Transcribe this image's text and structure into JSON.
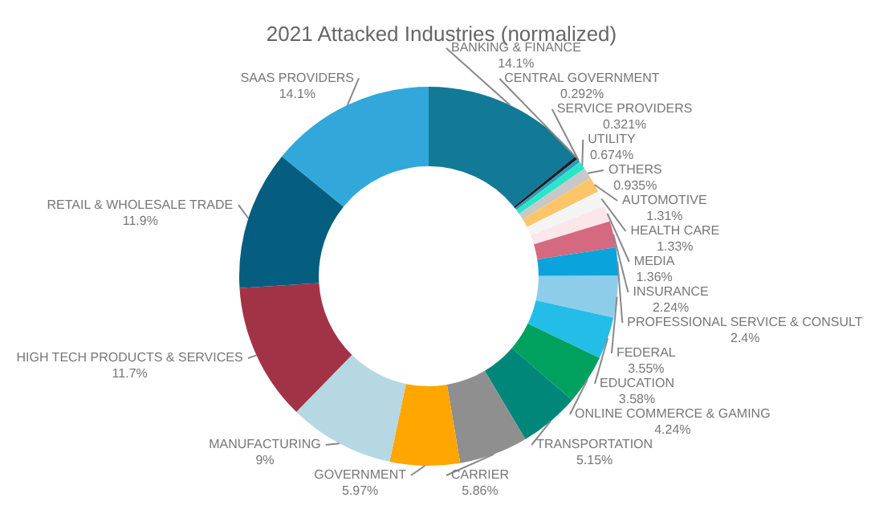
{
  "chart_data": {
    "type": "donut",
    "title": "2021 Attacked Industries (normalized)",
    "categories": [
      "BANKING & FINANCE",
      "CENTRAL GOVERNMENT",
      "SERVICE PROVIDERS",
      "UTILITY",
      "OTHERS",
      "AUTOMOTIVE",
      "HEALTH CARE",
      "MEDIA",
      "INSURANCE",
      "PROFESSIONAL SERVICE & CONSULT",
      "FEDERAL",
      "EDUCATION",
      "ONLINE COMMERCE & GAMING",
      "TRANSPORTATION",
      "CARRIER",
      "GOVERNMENT",
      "MANUFACTURING",
      "HIGH TECH PRODUCTS & SERVICES",
      "RETAIL & WHOLESALE TRADE",
      "SAAS PROVIDERS"
    ],
    "values": [
      14.1,
      0.292,
      0.321,
      0.674,
      0.935,
      1.31,
      1.33,
      1.36,
      2.24,
      2.4,
      3.55,
      3.58,
      4.24,
      5.15,
      5.86,
      5.97,
      9,
      11.7,
      11.9,
      14.1
    ],
    "value_labels": [
      "14.1%",
      "0.292%",
      "0.321%",
      "0.674%",
      "0.935%",
      "1.31%",
      "1.33%",
      "1.36%",
      "2.24%",
      "2.4%",
      "3.55%",
      "3.58%",
      "4.24%",
      "5.15%",
      "5.86%",
      "5.97%",
      "9%",
      "11.7%",
      "11.9%",
      "14.1%"
    ],
    "colors": [
      "#127a96",
      "#1b1f2e",
      "#2a9fb7",
      "#29e6c9",
      "#c8c8c8",
      "#fdc56a",
      "#f4f4f4",
      "#fbe6ea",
      "#d4697f",
      "#0aa3dc",
      "#8dcde9",
      "#24bde8",
      "#00a15f",
      "#00877a",
      "#8f8f8f",
      "#ffa600",
      "#b5d8e3",
      "#a23346",
      "#055e80",
      "#31a8d9"
    ]
  }
}
